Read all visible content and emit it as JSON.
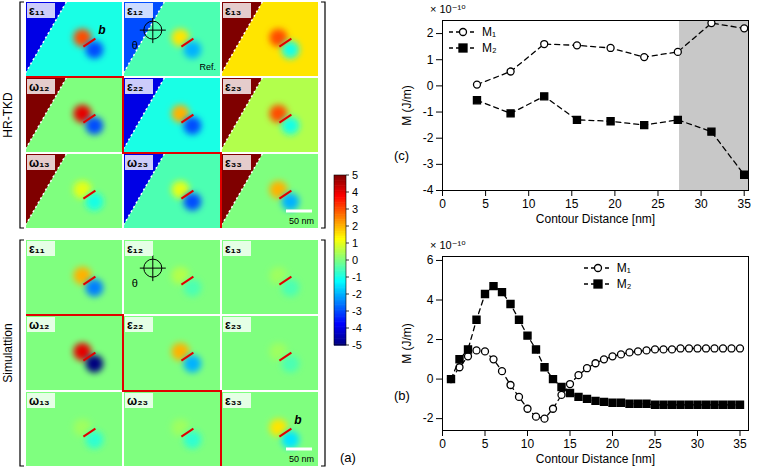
{
  "panel_a": {
    "label": "(a)",
    "colorbar": {
      "range": [
        -5,
        5
      ],
      "ticks": [
        5,
        4,
        3,
        2,
        1,
        0,
        -1,
        -2,
        -3,
        -4,
        -5
      ]
    },
    "groups": [
      {
        "name": "HR-TKD",
        "panels": [
          {
            "label": "ε₁₁",
            "background": -1,
            "lobes": [
              3,
              -3
            ],
            "corner": -4,
            "burgers_label": "b"
          },
          {
            "label": "ε₁₂",
            "background": -0.5,
            "lobes": [
              1.5,
              -2
            ],
            "corner": -3,
            "angle_label": "θ",
            "ref_label": "Ref."
          },
          {
            "label": "ε₁₃",
            "background": 1.5,
            "lobes": [
              3,
              -1
            ],
            "corner": 5
          },
          {
            "label": "ω₁₂",
            "background": 0,
            "lobes": [
              4,
              -3
            ],
            "corner": 5
          },
          {
            "label": "ε₂₂",
            "background": -1,
            "lobes": [
              2,
              -3
            ],
            "corner": -4
          },
          {
            "label": "ε₂₃",
            "background": 0.5,
            "lobes": [
              3,
              -1
            ],
            "corner": 5
          },
          {
            "label": "ω₁₃",
            "background": 0,
            "lobes": [
              1,
              -1
            ],
            "corner": 5
          },
          {
            "label": "ω₂₃",
            "background": -0.5,
            "lobes": [
              1,
              -3
            ],
            "corner": -4
          },
          {
            "label": "ε₃₃",
            "background": 0,
            "lobes": [
              2,
              -2
            ],
            "corner": 5,
            "scale_bar": "50 nm"
          }
        ]
      },
      {
        "name": "Simulattion",
        "panels": [
          {
            "label": "ε₁₁",
            "background": 0,
            "lobes": [
              2,
              -2.5
            ]
          },
          {
            "label": "ε₁₂",
            "background": 0,
            "lobes": [
              0.5,
              -0.5
            ],
            "angle_label": "θ"
          },
          {
            "label": "ε₁₃",
            "background": 0,
            "lobes": [
              0.3,
              -0.5
            ]
          },
          {
            "label": "ω₁₂",
            "background": 0,
            "lobes": [
              4,
              -5
            ]
          },
          {
            "label": "ε₂₂",
            "background": 0,
            "lobes": [
              2,
              -2
            ]
          },
          {
            "label": "ε₂₃",
            "background": 0,
            "lobes": [
              0.3,
              -0.5
            ]
          },
          {
            "label": "ω₁₃",
            "background": 0,
            "lobes": [
              0.3,
              -0.8
            ]
          },
          {
            "label": "ω₂₃",
            "background": 0,
            "lobes": [
              0.3,
              -0.8
            ]
          },
          {
            "label": "ε₃₃",
            "background": 0,
            "lobes": [
              1.5,
              -1.5
            ],
            "burgers_label": "b",
            "scale_bar": "50 nm"
          }
        ]
      }
    ]
  },
  "chart_data": [
    {
      "panel_label": "(c)",
      "type": "line",
      "x_label": "Contour Distance [nm]",
      "y_label": "M (J/m)",
      "y_multiplier": "× 10⁻¹⁰",
      "x": [
        4,
        7.9,
        11.8,
        15.6,
        19.5,
        23.4,
        27.3,
        31.2,
        35
      ],
      "xlim": [
        0,
        35.5
      ],
      "xticks": [
        0,
        5,
        10,
        15,
        20,
        25,
        30,
        35
      ],
      "ylim": [
        -4,
        2.5
      ],
      "yticks": [
        -4,
        -3,
        -2,
        -1,
        0,
        1,
        2
      ],
      "grid": false,
      "legend": "top-left",
      "shaded_region": [
        27.5,
        35.5
      ],
      "series": [
        {
          "name": "M₁",
          "color": "#000000",
          "marker": "open circle",
          "line_style": "dashed",
          "values": [
            0.05,
            0.55,
            1.6,
            1.55,
            1.45,
            1.1,
            1.3,
            2.4,
            2.2
          ]
        },
        {
          "name": "M₂",
          "color": "#000000",
          "marker": "square",
          "line_style": "dashed",
          "values": [
            -0.55,
            -1.05,
            -0.4,
            -1.3,
            -1.35,
            -1.5,
            -1.3,
            -1.75,
            -3.4
          ]
        }
      ]
    },
    {
      "panel_label": "(b)",
      "type": "line",
      "x_label": "Contour Distance [nm]",
      "y_label": "M (J/m)",
      "y_multiplier": "× 10⁻¹⁰",
      "x": [
        1,
        2,
        3,
        4,
        5,
        6,
        7,
        8,
        9,
        10,
        11,
        12,
        13,
        14,
        15,
        16,
        17,
        18,
        19,
        20,
        21,
        22,
        23,
        24,
        25,
        26,
        27,
        28,
        29,
        30,
        31,
        32,
        33,
        34,
        35
      ],
      "xlim": [
        0,
        36
      ],
      "xticks": [
        0,
        5,
        10,
        15,
        20,
        25,
        30,
        35
      ],
      "ylim": [
        -2.6,
        6.2
      ],
      "yticks": [
        -2,
        0,
        2,
        4,
        6
      ],
      "grid": false,
      "legend": "top",
      "series": [
        {
          "name": "M₁",
          "color": "#000000",
          "marker": "open circle",
          "line_style": "dashed",
          "values": [
            0,
            0.6,
            1.15,
            1.45,
            1.4,
            1.0,
            0.4,
            -0.3,
            -0.9,
            -1.5,
            -1.9,
            -2.0,
            -1.5,
            -0.8,
            -0.25,
            0.2,
            0.55,
            0.8,
            1.0,
            1.15,
            1.25,
            1.35,
            1.4,
            1.45,
            1.5,
            1.5,
            1.5,
            1.55,
            1.55,
            1.55,
            1.55,
            1.55,
            1.55,
            1.55,
            1.55
          ]
        },
        {
          "name": "M₂",
          "color": "#000000",
          "marker": "square",
          "line_style": "dashed",
          "values": [
            0,
            1.0,
            1.5,
            3.0,
            4.3,
            4.7,
            4.4,
            3.8,
            3.0,
            2.2,
            1.5,
            0.6,
            0,
            -0.4,
            -0.7,
            -0.9,
            -1.0,
            -1.1,
            -1.15,
            -1.2,
            -1.2,
            -1.25,
            -1.25,
            -1.25,
            -1.3,
            -1.3,
            -1.3,
            -1.3,
            -1.3,
            -1.3,
            -1.3,
            -1.3,
            -1.3,
            -1.3,
            -1.3
          ]
        }
      ]
    }
  ]
}
